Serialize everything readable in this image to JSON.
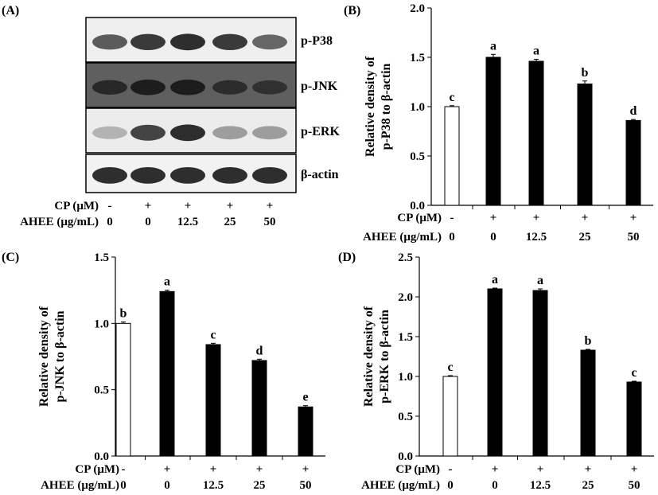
{
  "panels": {
    "A": "(A)",
    "B": "(B)",
    "C": "(C)",
    "D": "(D)"
  },
  "blot": {
    "lanes": 5,
    "bands": [
      {
        "label": "p-P38",
        "background": "#efefef",
        "intensity": [
          0.65,
          0.8,
          0.85,
          0.8,
          0.6
        ]
      },
      {
        "label": "p-JNK",
        "background": "#5f5f5f",
        "intensity": [
          0.55,
          0.7,
          0.7,
          0.5,
          0.45
        ]
      },
      {
        "label": "p-ERK",
        "background": "#ececec",
        "intensity": [
          0.25,
          0.75,
          0.85,
          0.35,
          0.35
        ]
      },
      {
        "label": "β-actin",
        "background": "#f2f2f2",
        "intensity": [
          0.85,
          0.85,
          0.85,
          0.85,
          0.85
        ]
      }
    ]
  },
  "treatment": {
    "cp_label": "CP (μM)",
    "ahee_label": "AHEE (μg/mL)",
    "cp_values": [
      "-",
      "+",
      "+",
      "+",
      "+"
    ],
    "ahee_values": [
      "0",
      "0",
      "12.5",
      "25",
      "50"
    ]
  },
  "chart_data": [
    {
      "id": "B",
      "type": "bar",
      "ylabel_line1": "Relative density of",
      "ylabel_line2": "p-P38 to β-actin",
      "ylim": [
        0,
        2.0
      ],
      "yticks": [
        "0.0",
        "0.5",
        "1.0",
        "1.5",
        "2.0"
      ],
      "values": [
        1.0,
        1.5,
        1.46,
        1.23,
        0.86
      ],
      "errors": [
        0.01,
        0.03,
        0.02,
        0.03,
        0.01
      ],
      "letters": [
        "c",
        "a",
        "a",
        "b",
        "d"
      ],
      "fills": [
        "#ffffff",
        "#000000",
        "#000000",
        "#000000",
        "#000000"
      ]
    },
    {
      "id": "C",
      "type": "bar",
      "ylabel_line1": "Relative density of",
      "ylabel_line2": "p-JNK to β-actin",
      "ylim": [
        0,
        1.5
      ],
      "yticks": [
        "0.0",
        "0.5",
        "1.0",
        "1.5"
      ],
      "values": [
        1.0,
        1.24,
        0.84,
        0.72,
        0.37
      ],
      "errors": [
        0.01,
        0.01,
        0.01,
        0.01,
        0.01
      ],
      "letters": [
        "b",
        "a",
        "c",
        "d",
        "e"
      ],
      "fills": [
        "#ffffff",
        "#000000",
        "#000000",
        "#000000",
        "#000000"
      ]
    },
    {
      "id": "D",
      "type": "bar",
      "ylabel_line1": "Relative density of",
      "ylabel_line2": "p-ERK to β-actin",
      "ylim": [
        0,
        2.5
      ],
      "yticks": [
        "0.0",
        "0.5",
        "1.0",
        "1.5",
        "2.0",
        "2.5"
      ],
      "values": [
        1.0,
        2.1,
        2.08,
        1.33,
        0.93
      ],
      "errors": [
        0.01,
        0.01,
        0.02,
        0.01,
        0.01
      ],
      "letters": [
        "c",
        "a",
        "a",
        "b",
        "c"
      ],
      "fills": [
        "#ffffff",
        "#000000",
        "#000000",
        "#000000",
        "#000000"
      ]
    }
  ]
}
